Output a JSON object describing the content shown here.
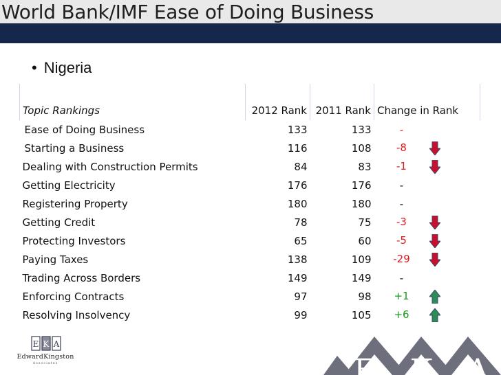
{
  "slide": {
    "title": "World Bank/IMF Ease of Doing Business",
    "bullet": "Nigeria"
  },
  "table": {
    "headers": [
      "Topic Rankings",
      "2012 Rank",
      "2011 Rank",
      "Change in Rank"
    ],
    "rows": [
      {
        "topic": "Ease of Doing Business",
        "r2012": "133",
        "r2011": "133",
        "change": "-",
        "trend": "none"
      },
      {
        "topic": "Starting a Business",
        "r2012": "116",
        "r2011": "108",
        "change": "-8",
        "trend": "down"
      },
      {
        "topic": "Dealing with Construction Permits",
        "r2012": "84",
        "r2011": "83",
        "change": "-1",
        "trend": "down"
      },
      {
        "topic": "Getting Electricity",
        "r2012": "176",
        "r2011": "176",
        "change": "-",
        "trend": "none"
      },
      {
        "topic": "Registering Property",
        "r2012": "180",
        "r2011": "180",
        "change": "-",
        "trend": "none"
      },
      {
        "topic": "Getting Credit",
        "r2012": "78",
        "r2011": "75",
        "change": "-3",
        "trend": "down"
      },
      {
        "topic": "Protecting Investors",
        "r2012": "65",
        "r2011": "60",
        "change": "-5",
        "trend": "down"
      },
      {
        "topic": "Paying Taxes",
        "r2012": "138",
        "r2011": "109",
        "change": "-29",
        "trend": "down"
      },
      {
        "topic": "Trading Across Borders",
        "r2012": "149",
        "r2011": "149",
        "change": "-",
        "trend": "none"
      },
      {
        "topic": "Enforcing Contracts",
        "r2012": "97",
        "r2011": "98",
        "change": "+1",
        "trend": "up"
      },
      {
        "topic": "Resolving Insolvency",
        "r2012": "99",
        "r2011": "105",
        "change": "+6",
        "trend": "up"
      }
    ]
  },
  "logo": {
    "letters": [
      "E",
      "K",
      "A"
    ],
    "name": "EdwardKingston",
    "sub": "Associates"
  },
  "colors": {
    "navy": "#15274a",
    "negative": "#e0181e",
    "positive": "#1a9a1a",
    "down_arrow": "#c8102e",
    "up_arrow": "#2e8b57"
  }
}
